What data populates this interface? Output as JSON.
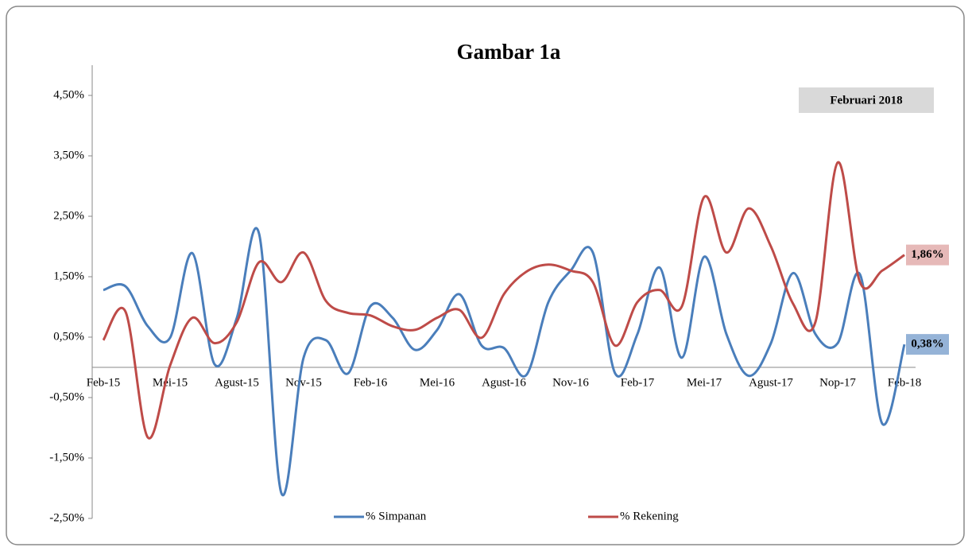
{
  "chart_data": {
    "type": "line",
    "title": "Gambar 1a",
    "annotation": "Februari 2018",
    "categories": [
      "Feb-15",
      null,
      null,
      "Mei-15",
      null,
      null,
      "Agust-15",
      null,
      null,
      "Nov-15",
      null,
      null,
      "Feb-16",
      null,
      null,
      "Mei-16",
      null,
      null,
      "Agust-16",
      null,
      null,
      "Nov-16",
      null,
      null,
      "Feb-17",
      null,
      null,
      "Mei-17",
      null,
      null,
      "Agust-17",
      null,
      null,
      "Nop-17",
      null,
      null,
      "Feb-18"
    ],
    "series": [
      {
        "name": "% Simpanan",
        "color": "#4a7ebb",
        "label_color": "#95b3d7",
        "values": [
          1.28,
          1.34,
          0.68,
          0.49,
          1.89,
          0.05,
          0.82,
          2.21,
          -2.08,
          0.16,
          0.45,
          -0.1,
          1.01,
          0.82,
          0.29,
          0.62,
          1.21,
          0.36,
          0.32,
          -0.13,
          1.08,
          1.6,
          1.9,
          -0.1,
          0.55,
          1.65,
          0.16,
          1.83,
          0.55,
          -0.14,
          0.4,
          1.56,
          0.55,
          0.4,
          1.54,
          -0.93,
          0.38
        ],
        "value_labels": [
          null,
          null,
          null,
          null,
          null,
          null,
          null,
          null,
          null,
          null,
          null,
          null,
          null,
          null,
          null,
          null,
          null,
          null,
          null,
          null,
          null,
          null,
          null,
          null,
          null,
          null,
          null,
          null,
          null,
          null,
          null,
          null,
          null,
          null,
          null,
          null,
          "0,38%"
        ]
      },
      {
        "name": "% Rekening",
        "color": "#be4b48",
        "label_color": "#e6b9b8",
        "values": [
          0.45,
          0.92,
          -1.16,
          0.03,
          0.82,
          0.4,
          0.75,
          1.74,
          1.41,
          1.9,
          1.1,
          0.9,
          0.86,
          0.68,
          0.62,
          0.82,
          0.95,
          0.49,
          1.21,
          1.58,
          1.7,
          1.6,
          1.41,
          0.36,
          1.08,
          1.28,
          1.01,
          2.82,
          1.9,
          2.63,
          2.0,
          1.05,
          0.75,
          3.39,
          1.41,
          1.6,
          1.86
        ],
        "value_labels": [
          null,
          null,
          null,
          null,
          null,
          null,
          null,
          null,
          null,
          null,
          null,
          null,
          null,
          null,
          null,
          null,
          null,
          null,
          null,
          null,
          null,
          null,
          null,
          null,
          null,
          null,
          null,
          null,
          null,
          null,
          null,
          null,
          null,
          null,
          null,
          null,
          "1,86%"
        ]
      }
    ],
    "ylim": [
      -2.5,
      5
    ],
    "yticks": [
      {
        "value": -2.5,
        "label": "-2,50%"
      },
      {
        "value": -1.5,
        "label": "-1,50%"
      },
      {
        "value": -0.5,
        "label": "-0,50%"
      },
      {
        "value": 0.5,
        "label": "0,50%"
      },
      {
        "value": 1.5,
        "label": "1,50%"
      },
      {
        "value": 2.5,
        "label": "2,50%"
      },
      {
        "value": 3.5,
        "label": "3,50%"
      },
      {
        "value": 4.5,
        "label": "4,50%"
      }
    ],
    "grid": false,
    "legend": "bottom"
  }
}
